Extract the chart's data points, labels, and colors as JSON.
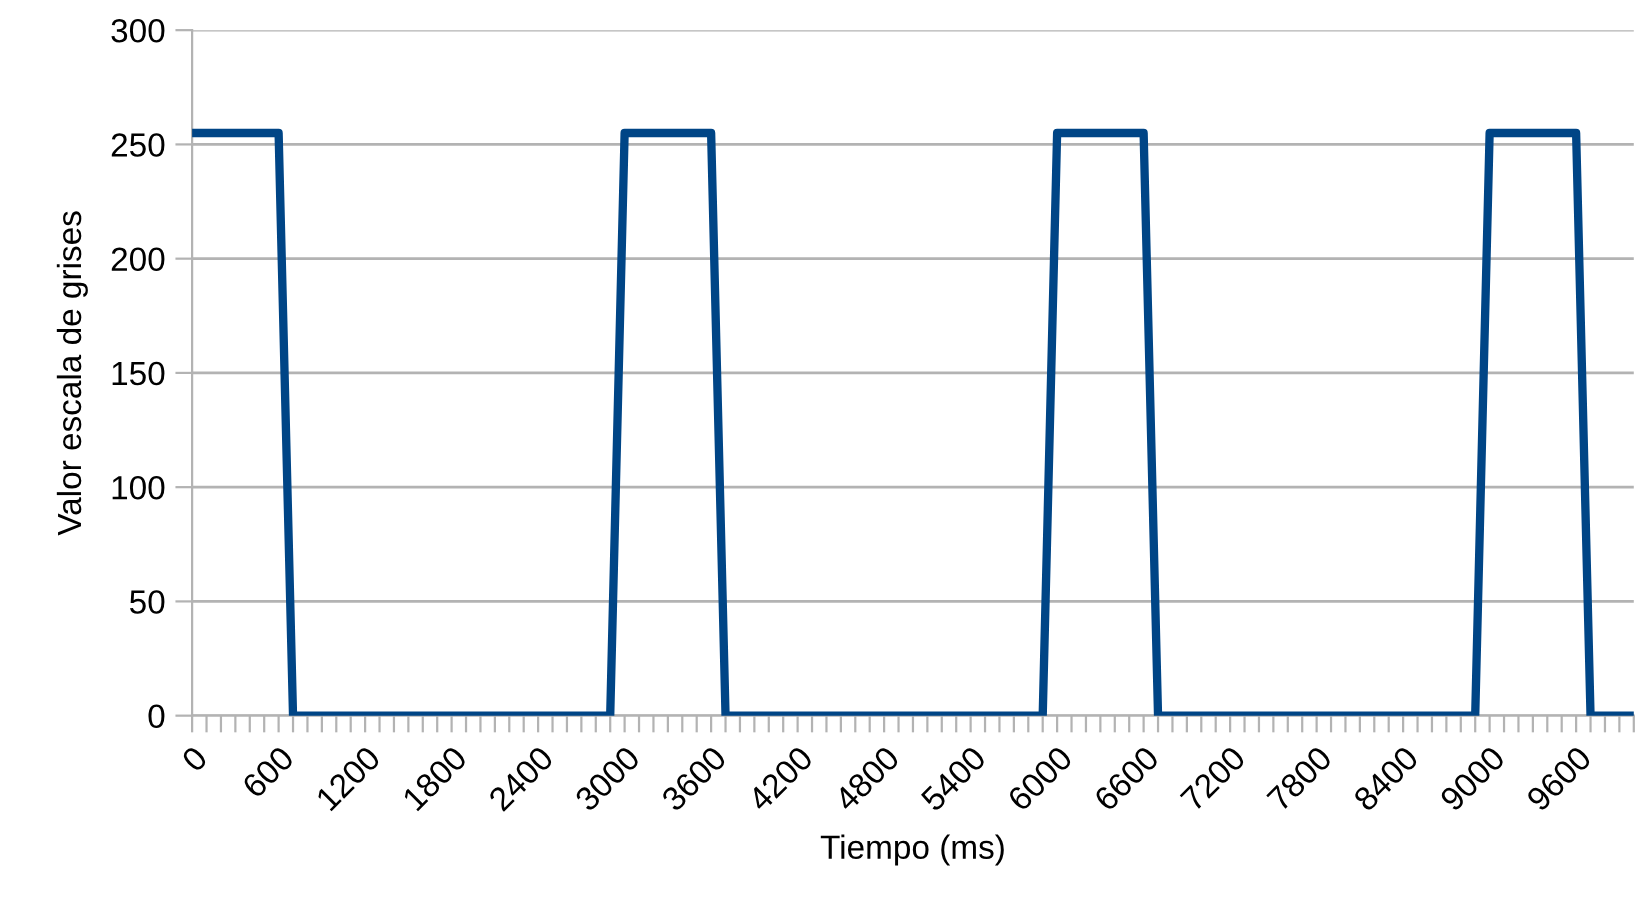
{
  "chart_data": {
    "type": "line",
    "xlabel": "Tiempo (ms)",
    "ylabel": "Valor escala de grises",
    "series": [
      {
        "color": "#004586",
        "x": [
          0,
          600,
          700,
          2900,
          3000,
          3600,
          3700,
          5900,
          6000,
          6600,
          6700,
          8900,
          9000,
          9600,
          9700,
          10000
        ],
        "values": [
          255,
          255,
          0,
          0,
          255,
          255,
          0,
          0,
          255,
          255,
          0,
          0,
          255,
          255,
          0,
          0
        ]
      }
    ],
    "xlim": [
      0,
      10000
    ],
    "ylim": [
      0,
      300
    ],
    "yticks": [
      0,
      50,
      100,
      150,
      200,
      250,
      300
    ],
    "xticks": [
      0,
      {
        "value": 100,
        "label": null
      },
      {
        "value": 200,
        "label": null
      },
      {
        "value": 300,
        "label": null
      },
      {
        "value": 400,
        "label": null
      },
      {
        "value": 500,
        "label": null
      },
      600,
      {
        "value": 700,
        "label": null
      },
      {
        "value": 800,
        "label": null
      },
      {
        "value": 900,
        "label": null
      },
      {
        "value": 1000,
        "label": null
      },
      {
        "value": 1100,
        "label": null
      },
      1200,
      {
        "value": 1300,
        "label": null
      },
      {
        "value": 1400,
        "label": null
      },
      {
        "value": 1500,
        "label": null
      },
      {
        "value": 1600,
        "label": null
      },
      {
        "value": 1700,
        "label": null
      },
      1800,
      {
        "value": 1900,
        "label": null
      },
      {
        "value": 2000,
        "label": null
      },
      {
        "value": 2100,
        "label": null
      },
      {
        "value": 2200,
        "label": null
      },
      {
        "value": 2300,
        "label": null
      },
      2400,
      {
        "value": 2500,
        "label": null
      },
      {
        "value": 2600,
        "label": null
      },
      {
        "value": 2700,
        "label": null
      },
      {
        "value": 2800,
        "label": null
      },
      {
        "value": 2900,
        "label": null
      },
      3000,
      {
        "value": 3100,
        "label": null
      },
      {
        "value": 3200,
        "label": null
      },
      {
        "value": 3300,
        "label": null
      },
      {
        "value": 3400,
        "label": null
      },
      {
        "value": 3500,
        "label": null
      },
      3600,
      {
        "value": 3700,
        "label": null
      },
      {
        "value": 3800,
        "label": null
      },
      {
        "value": 3900,
        "label": null
      },
      {
        "value": 4000,
        "label": null
      },
      {
        "value": 4100,
        "label": null
      },
      4200,
      {
        "value": 4300,
        "label": null
      },
      {
        "value": 4400,
        "label": null
      },
      {
        "value": 4500,
        "label": null
      },
      {
        "value": 4600,
        "label": null
      },
      {
        "value": 4700,
        "label": null
      },
      4800,
      {
        "value": 4900,
        "label": null
      },
      {
        "value": 5000,
        "label": null
      },
      {
        "value": 5100,
        "label": null
      },
      {
        "value": 5200,
        "label": null
      },
      {
        "value": 5300,
        "label": null
      },
      5400,
      {
        "value": 5500,
        "label": null
      },
      {
        "value": 5600,
        "label": null
      },
      {
        "value": 5700,
        "label": null
      },
      {
        "value": 5800,
        "label": null
      },
      {
        "value": 5900,
        "label": null
      },
      6000,
      {
        "value": 6100,
        "label": null
      },
      {
        "value": 6200,
        "label": null
      },
      {
        "value": 6300,
        "label": null
      },
      {
        "value": 6400,
        "label": null
      },
      {
        "value": 6500,
        "label": null
      },
      6600,
      {
        "value": 6700,
        "label": null
      },
      {
        "value": 6800,
        "label": null
      },
      {
        "value": 6900,
        "label": null
      },
      {
        "value": 7000,
        "label": null
      },
      {
        "value": 7100,
        "label": null
      },
      7200,
      {
        "value": 7300,
        "label": null
      },
      {
        "value": 7400,
        "label": null
      },
      {
        "value": 7500,
        "label": null
      },
      {
        "value": 7600,
        "label": null
      },
      {
        "value": 7700,
        "label": null
      },
      7800,
      {
        "value": 7900,
        "label": null
      },
      {
        "value": 8000,
        "label": null
      },
      {
        "value": 8100,
        "label": null
      },
      {
        "value": 8200,
        "label": null
      },
      {
        "value": 8300,
        "label": null
      },
      8400,
      {
        "value": 8500,
        "label": null
      },
      {
        "value": 8600,
        "label": null
      },
      {
        "value": 8700,
        "label": null
      },
      {
        "value": 8800,
        "label": null
      },
      {
        "value": 8900,
        "label": null
      },
      9000,
      {
        "value": 9100,
        "label": null
      },
      {
        "value": 9200,
        "label": null
      },
      {
        "value": 9300,
        "label": null
      },
      {
        "value": 9400,
        "label": null
      },
      {
        "value": 9500,
        "label": null
      },
      9600,
      {
        "value": 9700,
        "label": null
      },
      {
        "value": 9800,
        "label": null
      },
      {
        "value": 9900,
        "label": null
      },
      {
        "value": 10000,
        "label": null
      }
    ],
    "grid": "y",
    "line_style": "solid",
    "marker": "none"
  }
}
